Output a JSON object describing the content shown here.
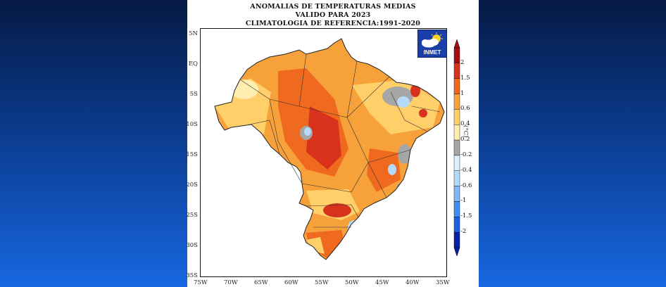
{
  "title": {
    "line1": "ANOMALIAS DE TEMPERATURAS MEDIAS",
    "line2": "VALIDO PARA 2023",
    "line3": "CLIMATOLOGIA DE REFERENCIA:1991-2020"
  },
  "logo": {
    "text": "INMET",
    "icon": "sun-cloud-icon"
  },
  "axes": {
    "lat_labels": [
      "5N",
      "EQ",
      "5S",
      "10S",
      "15S",
      "20S",
      "25S",
      "30S",
      "35S"
    ],
    "lon_labels": [
      "75W",
      "70W",
      "65W",
      "60W",
      "55W",
      "50W",
      "45W",
      "40W",
      "35W"
    ]
  },
  "colorbar": {
    "unit": "(°C)",
    "ticks": [
      "-2",
      "-1.5",
      "-1",
      "-0.6",
      "-0.4",
      "-0.2",
      "0.2",
      "0.4",
      "0.6",
      "1",
      "1.5",
      "2"
    ],
    "colors": [
      "#0a1fa8",
      "#1f5fe0",
      "#3f8ef0",
      "#7fb8f4",
      "#b5d9f8",
      "#dceffb",
      "#a6a6a6",
      "#ffeeb0",
      "#ffcf6a",
      "#f7a13a",
      "#ef6a1e",
      "#d9321c",
      "#a30f14"
    ]
  },
  "map": {
    "region": "Brasil",
    "dominant_anomaly": "positive",
    "palette": {
      "gray": "#a6a6a6",
      "pale": "#ffeeb0",
      "light": "#ffcf6a",
      "orange": "#f7a13a",
      "dark": "#ef6a1e",
      "red": "#d9321c",
      "lightblue": "#b5d9f8",
      "blue": "#3f8ef0"
    }
  }
}
